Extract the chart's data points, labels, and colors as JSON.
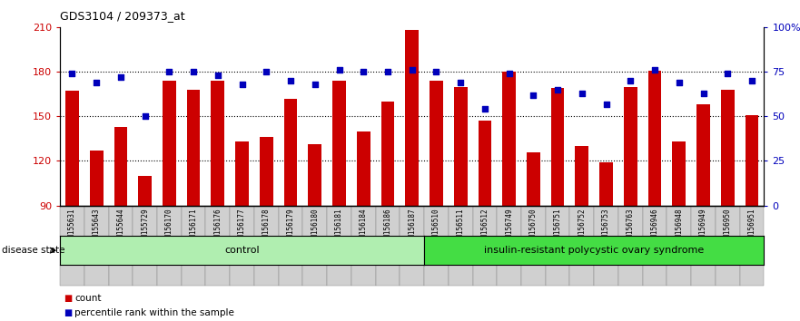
{
  "title": "GDS3104 / 209373_at",
  "samples": [
    "GSM155631",
    "GSM155643",
    "GSM155644",
    "GSM155729",
    "GSM156170",
    "GSM156171",
    "GSM156176",
    "GSM156177",
    "GSM156178",
    "GSM156179",
    "GSM156180",
    "GSM156181",
    "GSM156184",
    "GSM156186",
    "GSM156187",
    "GSM156510",
    "GSM156511",
    "GSM156512",
    "GSM156749",
    "GSM156750",
    "GSM156751",
    "GSM156752",
    "GSM156753",
    "GSM156763",
    "GSM156946",
    "GSM156948",
    "GSM156949",
    "GSM156950",
    "GSM156951"
  ],
  "bar_values": [
    167,
    127,
    143,
    110,
    174,
    168,
    174,
    133,
    136,
    162,
    131,
    174,
    140,
    160,
    208,
    174,
    170,
    147,
    180,
    126,
    169,
    130,
    119,
    170,
    181,
    133,
    158,
    168,
    151
  ],
  "percentile_values": [
    74,
    69,
    72,
    50,
    75,
    75,
    73,
    68,
    75,
    70,
    68,
    76,
    75,
    75,
    76,
    75,
    69,
    54,
    74,
    62,
    65,
    63,
    57,
    70,
    76,
    69,
    63,
    74,
    70
  ],
  "n_control": 15,
  "group_labels": [
    "control",
    "insulin-resistant polycystic ovary syndrome"
  ],
  "bar_color": "#cc0000",
  "percentile_color": "#0000bb",
  "bar_bottom": 90,
  "ylim_left": [
    90,
    210
  ],
  "ylim_right": [
    0,
    100
  ],
  "yticks_left": [
    90,
    120,
    150,
    180,
    210
  ],
  "ytick_labels_left": [
    "90",
    "120",
    "150",
    "180",
    "210"
  ],
  "yticks_right": [
    0,
    25,
    50,
    75,
    100
  ],
  "ytick_labels_right": [
    "0",
    "25",
    "50",
    "75",
    "100%"
  ],
  "hlines": [
    120,
    150,
    180
  ],
  "bg_color": "#ffffff",
  "group_color_ctrl": "#b0eeb0",
  "group_color_ins": "#44dd44",
  "tick_bg_color": "#d0d0d0",
  "label_count": "count",
  "label_percentile": "percentile rank within the sample",
  "disease_state_label": "disease state"
}
